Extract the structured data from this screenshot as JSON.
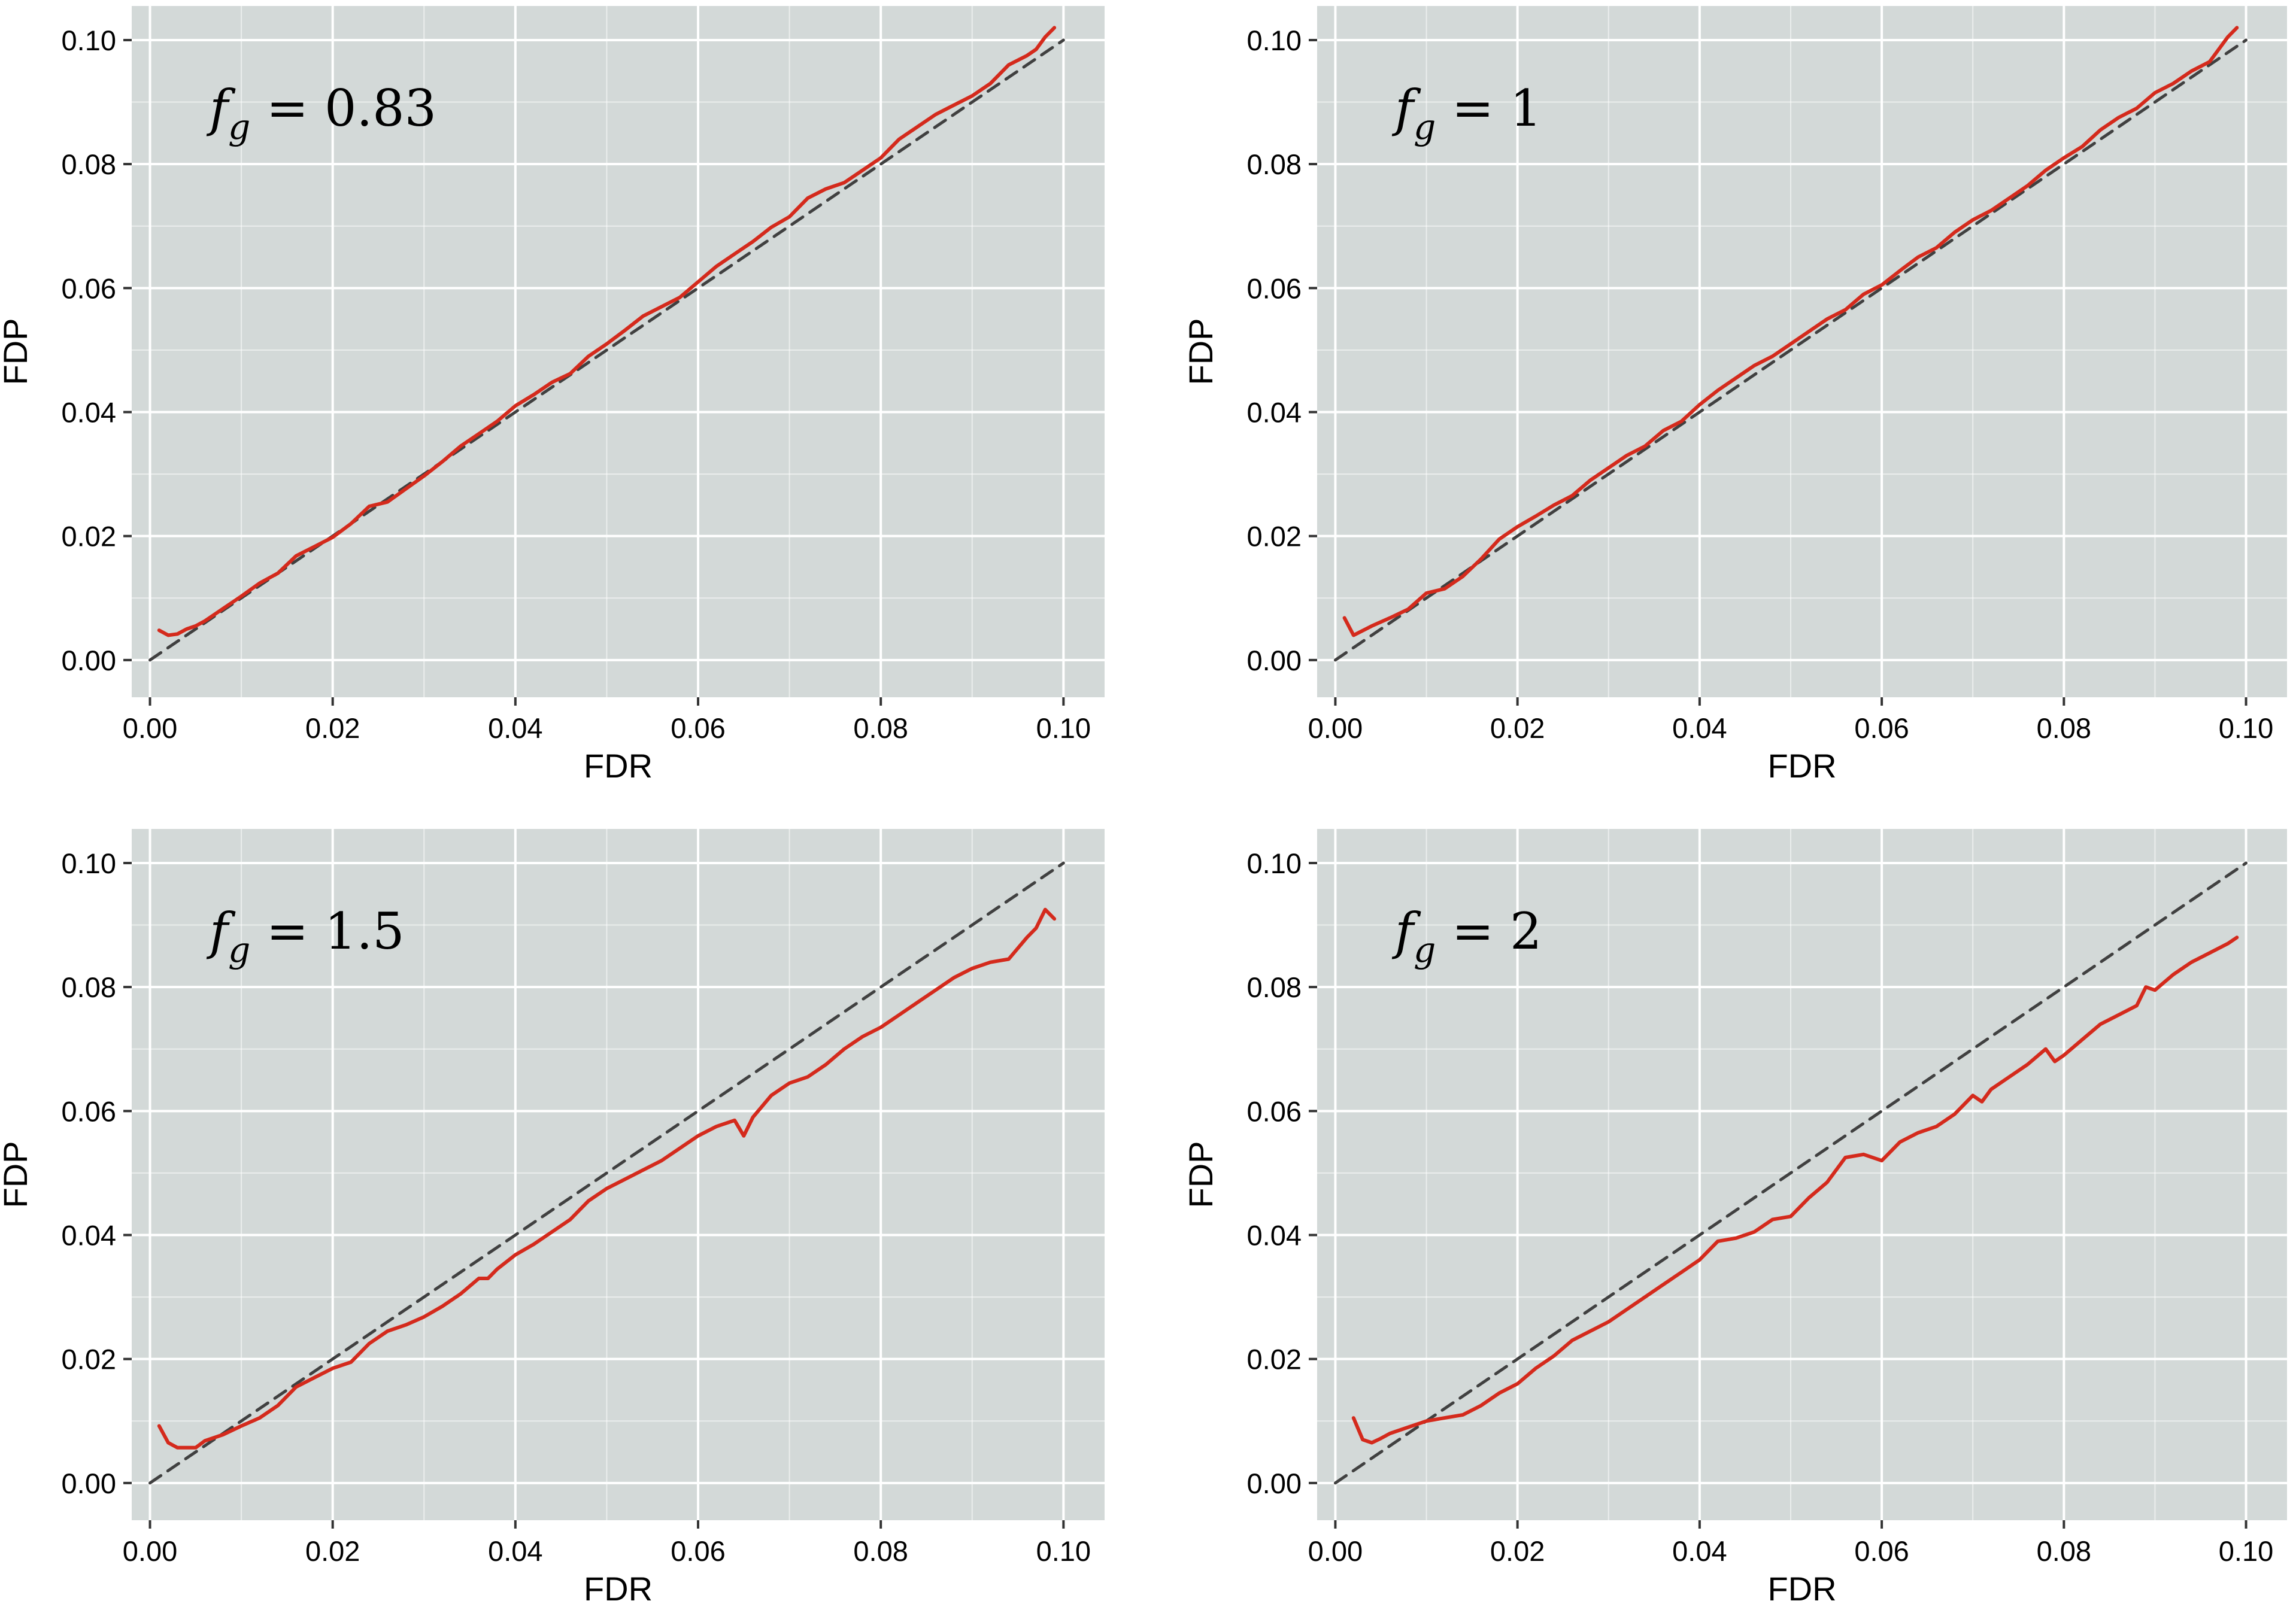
{
  "chart_data": [
    {
      "type": "line",
      "annotation": {
        "var": "f",
        "sub": "g",
        "rest": " = 0.83"
      },
      "xlabel": "FDR",
      "ylabel": "FDP",
      "xlim": [
        -0.002,
        0.1045
      ],
      "ylim": [
        -0.006,
        0.1055
      ],
      "xticks": [
        "0.00",
        "0.02",
        "0.04",
        "0.06",
        "0.08",
        "0.10"
      ],
      "yticks": [
        "0.00",
        "0.02",
        "0.04",
        "0.06",
        "0.08",
        "0.10"
      ],
      "grid": true,
      "background": "#d3d9d8",
      "series": [
        {
          "style": "dashed",
          "color": "#404040",
          "x": [
            0.0,
            0.1
          ],
          "y": [
            0.0,
            0.1
          ]
        },
        {
          "style": "solid",
          "color": "#d42a1c",
          "x": [
            0.001,
            0.002,
            0.003,
            0.004,
            0.005,
            0.006,
            0.008,
            0.01,
            0.012,
            0.014,
            0.016,
            0.018,
            0.02,
            0.022,
            0.024,
            0.026,
            0.028,
            0.03,
            0.032,
            0.034,
            0.036,
            0.038,
            0.04,
            0.042,
            0.044,
            0.046,
            0.048,
            0.05,
            0.052,
            0.054,
            0.056,
            0.058,
            0.06,
            0.062,
            0.064,
            0.066,
            0.068,
            0.07,
            0.072,
            0.074,
            0.076,
            0.078,
            0.08,
            0.082,
            0.084,
            0.086,
            0.088,
            0.09,
            0.092,
            0.094,
            0.096,
            0.097,
            0.098,
            0.099
          ],
          "y": [
            0.0048,
            0.004,
            0.0042,
            0.005,
            0.0055,
            0.0063,
            0.0083,
            0.0103,
            0.0124,
            0.014,
            0.0168,
            0.0183,
            0.0198,
            0.022,
            0.0248,
            0.0255,
            0.0276,
            0.0297,
            0.032,
            0.0345,
            0.0365,
            0.0385,
            0.041,
            0.0428,
            0.0448,
            0.0462,
            0.049,
            0.051,
            0.0532,
            0.0555,
            0.057,
            0.0585,
            0.061,
            0.0635,
            0.0655,
            0.0675,
            0.0698,
            0.0715,
            0.0745,
            0.076,
            0.077,
            0.079,
            0.081,
            0.084,
            0.086,
            0.088,
            0.0895,
            0.091,
            0.093,
            0.096,
            0.0975,
            0.0985,
            0.1005,
            0.102
          ]
        }
      ]
    },
    {
      "type": "line",
      "annotation": {
        "var": "f",
        "sub": "g",
        "rest": " = 1"
      },
      "xlabel": "FDR",
      "ylabel": "FDP",
      "xlim": [
        -0.002,
        0.1045
      ],
      "ylim": [
        -0.006,
        0.1055
      ],
      "xticks": [
        "0.00",
        "0.02",
        "0.04",
        "0.06",
        "0.08",
        "0.10"
      ],
      "yticks": [
        "0.00",
        "0.02",
        "0.04",
        "0.06",
        "0.08",
        "0.10"
      ],
      "grid": true,
      "background": "#d3d9d8",
      "series": [
        {
          "style": "dashed",
          "color": "#404040",
          "x": [
            0.0,
            0.1
          ],
          "y": [
            0.0,
            0.1
          ]
        },
        {
          "style": "solid",
          "color": "#d42a1c",
          "x": [
            0.001,
            0.002,
            0.004,
            0.006,
            0.008,
            0.01,
            0.012,
            0.014,
            0.016,
            0.018,
            0.02,
            0.022,
            0.024,
            0.026,
            0.028,
            0.03,
            0.032,
            0.034,
            0.036,
            0.038,
            0.04,
            0.042,
            0.044,
            0.046,
            0.048,
            0.05,
            0.052,
            0.054,
            0.056,
            0.058,
            0.06,
            0.062,
            0.064,
            0.066,
            0.068,
            0.07,
            0.072,
            0.074,
            0.076,
            0.078,
            0.08,
            0.082,
            0.084,
            0.086,
            0.088,
            0.09,
            0.092,
            0.094,
            0.096,
            0.097,
            0.098,
            0.099
          ],
          "y": [
            0.0068,
            0.004,
            0.0055,
            0.0068,
            0.0082,
            0.0108,
            0.0115,
            0.0135,
            0.0163,
            0.0195,
            0.0215,
            0.0232,
            0.025,
            0.0265,
            0.029,
            0.031,
            0.033,
            0.0345,
            0.037,
            0.0385,
            0.0412,
            0.0435,
            0.0455,
            0.0475,
            0.049,
            0.051,
            0.053,
            0.055,
            0.0565,
            0.059,
            0.0605,
            0.0628,
            0.065,
            0.0665,
            0.069,
            0.071,
            0.0725,
            0.0745,
            0.0765,
            0.079,
            0.081,
            0.0828,
            0.0855,
            0.0875,
            0.089,
            0.0915,
            0.093,
            0.095,
            0.0965,
            0.0985,
            0.1005,
            0.102
          ]
        }
      ]
    },
    {
      "type": "line",
      "annotation": {
        "var": "f",
        "sub": "g",
        "rest": " = 1.5"
      },
      "xlabel": "FDR",
      "ylabel": "FDP",
      "xlim": [
        -0.002,
        0.1045
      ],
      "ylim": [
        -0.006,
        0.1055
      ],
      "xticks": [
        "0.00",
        "0.02",
        "0.04",
        "0.06",
        "0.08",
        "0.10"
      ],
      "yticks": [
        "0.00",
        "0.02",
        "0.04",
        "0.06",
        "0.08",
        "0.10"
      ],
      "grid": true,
      "background": "#d3d9d8",
      "series": [
        {
          "style": "dashed",
          "color": "#404040",
          "x": [
            0.0,
            0.1
          ],
          "y": [
            0.0,
            0.1
          ]
        },
        {
          "style": "solid",
          "color": "#d42a1c",
          "x": [
            0.001,
            0.002,
            0.003,
            0.004,
            0.005,
            0.006,
            0.008,
            0.01,
            0.012,
            0.014,
            0.016,
            0.018,
            0.02,
            0.022,
            0.024,
            0.026,
            0.028,
            0.03,
            0.032,
            0.034,
            0.036,
            0.037,
            0.038,
            0.04,
            0.042,
            0.044,
            0.046,
            0.048,
            0.05,
            0.052,
            0.054,
            0.056,
            0.058,
            0.06,
            0.062,
            0.064,
            0.065,
            0.066,
            0.068,
            0.07,
            0.072,
            0.074,
            0.076,
            0.078,
            0.08,
            0.082,
            0.084,
            0.086,
            0.088,
            0.09,
            0.092,
            0.094,
            0.096,
            0.097,
            0.098,
            0.099
          ],
          "y": [
            0.0092,
            0.0065,
            0.0057,
            0.0057,
            0.0057,
            0.0068,
            0.0078,
            0.0092,
            0.0105,
            0.0125,
            0.0155,
            0.017,
            0.0185,
            0.0195,
            0.0225,
            0.0245,
            0.0255,
            0.0268,
            0.0285,
            0.0305,
            0.033,
            0.033,
            0.0345,
            0.0368,
            0.0385,
            0.0405,
            0.0425,
            0.0455,
            0.0475,
            0.049,
            0.0505,
            0.052,
            0.054,
            0.056,
            0.0575,
            0.0585,
            0.056,
            0.059,
            0.0625,
            0.0645,
            0.0655,
            0.0675,
            0.07,
            0.072,
            0.0735,
            0.0755,
            0.0775,
            0.0795,
            0.0815,
            0.083,
            0.084,
            0.0845,
            0.088,
            0.0895,
            0.0925,
            0.091
          ]
        }
      ]
    },
    {
      "type": "line",
      "annotation": {
        "var": "f",
        "sub": "g",
        "rest": " = 2"
      },
      "xlabel": "FDR",
      "ylabel": "FDP",
      "xlim": [
        -0.002,
        0.1045
      ],
      "ylim": [
        -0.006,
        0.1055
      ],
      "xticks": [
        "0.00",
        "0.02",
        "0.04",
        "0.06",
        "0.08",
        "0.10"
      ],
      "yticks": [
        "0.00",
        "0.02",
        "0.04",
        "0.06",
        "0.08",
        "0.10"
      ],
      "grid": true,
      "background": "#d3d9d8",
      "series": [
        {
          "style": "dashed",
          "color": "#404040",
          "x": [
            0.0,
            0.1
          ],
          "y": [
            0.0,
            0.1
          ]
        },
        {
          "style": "solid",
          "color": "#d42a1c",
          "x": [
            0.002,
            0.003,
            0.004,
            0.005,
            0.006,
            0.008,
            0.01,
            0.012,
            0.014,
            0.016,
            0.018,
            0.02,
            0.022,
            0.024,
            0.026,
            0.028,
            0.03,
            0.032,
            0.034,
            0.036,
            0.038,
            0.04,
            0.042,
            0.044,
            0.046,
            0.048,
            0.05,
            0.052,
            0.054,
            0.056,
            0.058,
            0.06,
            0.062,
            0.064,
            0.066,
            0.068,
            0.07,
            0.071,
            0.072,
            0.074,
            0.076,
            0.078,
            0.079,
            0.08,
            0.082,
            0.084,
            0.086,
            0.088,
            0.089,
            0.09,
            0.092,
            0.094,
            0.096,
            0.098,
            0.099
          ],
          "y": [
            0.0105,
            0.007,
            0.0065,
            0.0072,
            0.008,
            0.009,
            0.01,
            0.0105,
            0.011,
            0.0125,
            0.0145,
            0.016,
            0.0185,
            0.0205,
            0.023,
            0.0245,
            0.026,
            0.028,
            0.03,
            0.032,
            0.034,
            0.036,
            0.039,
            0.0395,
            0.0405,
            0.0425,
            0.043,
            0.046,
            0.0485,
            0.0525,
            0.053,
            0.052,
            0.055,
            0.0565,
            0.0575,
            0.0595,
            0.0625,
            0.0615,
            0.0635,
            0.0655,
            0.0675,
            0.07,
            0.068,
            0.069,
            0.0715,
            0.074,
            0.0755,
            0.077,
            0.08,
            0.0795,
            0.082,
            0.084,
            0.0855,
            0.087,
            0.088
          ]
        }
      ]
    }
  ]
}
